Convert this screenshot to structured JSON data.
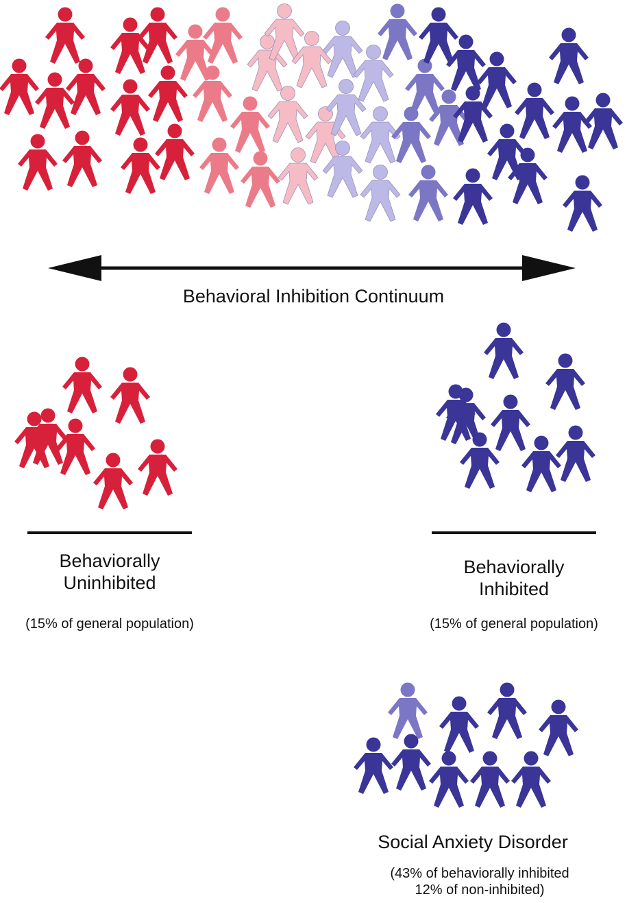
{
  "colors": {
    "uninhibited": "#d7213a",
    "uninhibited_mid": "#ec7b89",
    "uninhibited_light": "#f6bcc5",
    "inhibited_light": "#bdb9e6",
    "inhibited_mid": "#7c77c4",
    "inhibited": "#3a3597",
    "ink": "#111111"
  },
  "continuum": {
    "label": "Behavioral Inhibition Continuum",
    "arrow": "double-headed-arrow"
  },
  "uninhibited_group": {
    "title_line1": "Behaviorally",
    "title_line2": "Uninhibited",
    "note": "(15% of general population)",
    "figure_count": 7
  },
  "inhibited_group": {
    "title_line1": "Behaviorally",
    "title_line2": "Inhibited",
    "note": "(15% of general population)",
    "figure_count": 8
  },
  "sad_group": {
    "title": "Social Anxiety Disorder",
    "note_line1": "(43% of behaviorally inhibited",
    "note_line2": "12% of non-inhibited)",
    "figure_count": 9
  }
}
